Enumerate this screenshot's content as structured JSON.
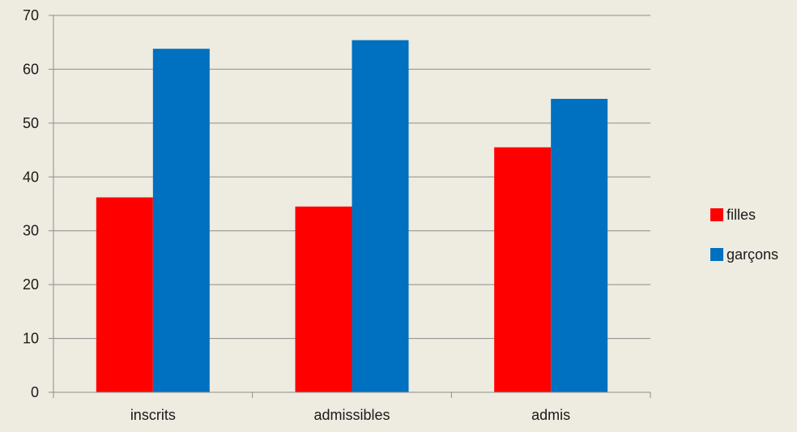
{
  "chart_data": {
    "type": "bar",
    "categories": [
      "inscrits",
      "admissibles",
      "admis"
    ],
    "series": [
      {
        "name": "filles",
        "values": [
          36.2,
          34.5,
          45.5
        ],
        "color": "#ff0000"
      },
      {
        "name": "garçons",
        "values": [
          63.8,
          65.4,
          54.5
        ],
        "color": "#0070c0"
      }
    ],
    "yticks": [
      "0",
      "10",
      "20",
      "30",
      "40",
      "50",
      "60",
      "70"
    ],
    "ylim": [
      0,
      70
    ],
    "grid": true,
    "legend_position": "right",
    "colors": {
      "background": "#eeebe0",
      "gridline": "#8c8c8c",
      "axis": "#8c8c8c"
    }
  }
}
